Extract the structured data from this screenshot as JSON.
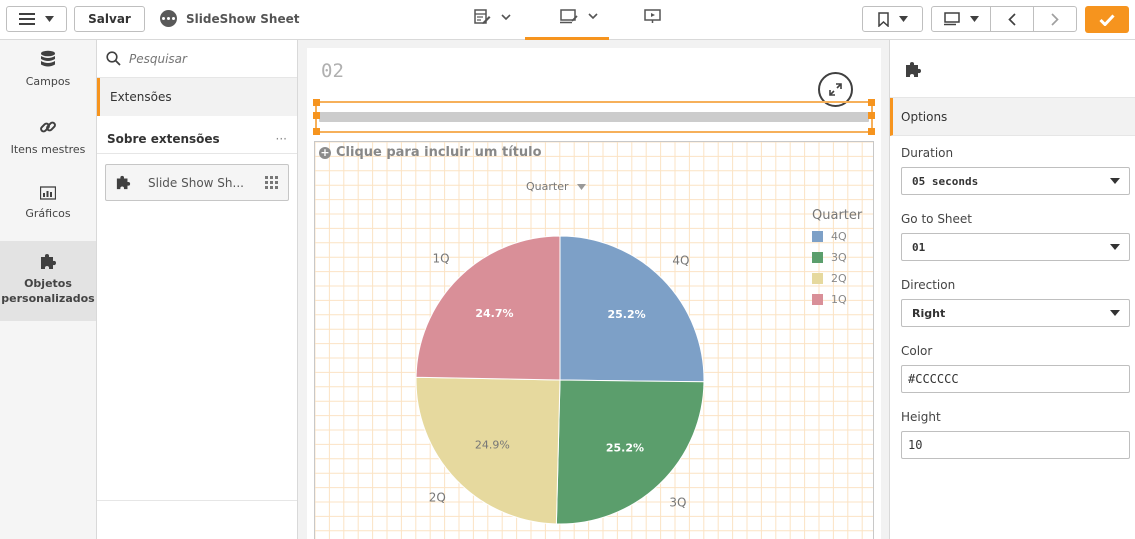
{
  "toolbar": {
    "save_label": "Salvar",
    "app_title": "SlideShow Sheet"
  },
  "left_rail": {
    "items": [
      {
        "label": "Campos",
        "icon": "database-icon"
      },
      {
        "label": "Itens mestres",
        "icon": "link-icon"
      },
      {
        "label": "Gráficos",
        "icon": "bar-chart-icon"
      },
      {
        "label": "Objetos personalizados",
        "icon": "puzzle-icon",
        "active": true
      }
    ]
  },
  "asset_panel": {
    "search_placeholder": "Pesquisar",
    "section_label": "Extensões",
    "about_label": "Sobre extensões",
    "more_label": "···",
    "extension_item": "Slide Show Sh..."
  },
  "sheet": {
    "title": "02",
    "slideshow_bar_color": "#CCCCCC",
    "chart": {
      "add_title_label": "Clique para incluir um título",
      "dimension_label": "Quarter",
      "legend_title": "Quarter"
    }
  },
  "chart_data": {
    "type": "pie",
    "categories": [
      "4Q",
      "3Q",
      "2Q",
      "1Q"
    ],
    "values": [
      25.2,
      25.2,
      24.9,
      24.7
    ],
    "data_labels": [
      "25.2%",
      "25.2%",
      "24.9%",
      "24.7%"
    ],
    "colors": [
      "#7da0c7",
      "#5b9e6c",
      "#e6d99e",
      "#d98f98"
    ],
    "legend_position": "right",
    "legend_title": "Quarter"
  },
  "properties": {
    "tab_label": "Options",
    "fields": {
      "duration": {
        "label": "Duration",
        "value": "05 seconds"
      },
      "go_to_sheet": {
        "label": "Go to Sheet",
        "value": "01"
      },
      "direction": {
        "label": "Direction",
        "value": "Right"
      },
      "color": {
        "label": "Color",
        "value": "#CCCCCC"
      },
      "height": {
        "label": "Height",
        "value": "10"
      }
    }
  },
  "colors": {
    "accent": "#f6941e",
    "selection": "#f6b05a"
  }
}
